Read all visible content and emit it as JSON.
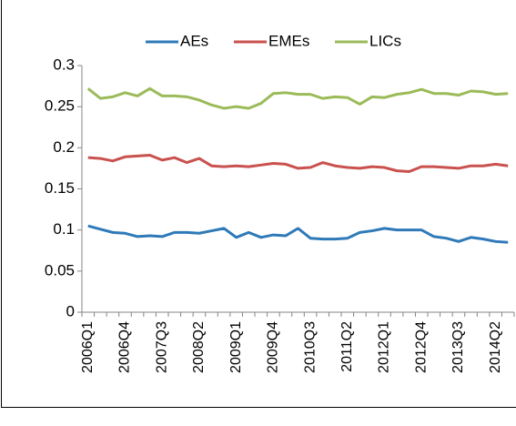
{
  "chart_data": {
    "type": "line",
    "categories": [
      "2006Q1",
      null,
      null,
      "2006Q4",
      null,
      null,
      "2007Q3",
      null,
      null,
      "2008Q2",
      null,
      null,
      "2009Q1",
      null,
      null,
      "2009Q4",
      null,
      null,
      "2010Q3",
      null,
      null,
      "2011Q2",
      null,
      null,
      "2012Q1",
      null,
      null,
      "2012Q4",
      null,
      null,
      "2013Q3",
      null,
      null,
      "2014Q2",
      null
    ],
    "series": [
      {
        "name": "AEs",
        "color": "#2e7ab8",
        "values": [
          0.105,
          0.101,
          0.097,
          0.096,
          0.092,
          0.093,
          0.092,
          0.097,
          0.097,
          0.096,
          0.099,
          0.102,
          0.091,
          0.097,
          0.091,
          0.094,
          0.093,
          0.102,
          0.09,
          0.089,
          0.089,
          0.09,
          0.097,
          0.099,
          0.102,
          0.1,
          0.1,
          0.1,
          0.092,
          0.09,
          0.086,
          0.091,
          0.089,
          0.086,
          0.085
        ]
      },
      {
        "name": "EMEs",
        "color": "#c9514e",
        "values": [
          0.188,
          0.187,
          0.184,
          0.189,
          0.19,
          0.191,
          0.185,
          0.188,
          0.182,
          0.187,
          0.178,
          0.177,
          0.178,
          0.177,
          0.179,
          0.181,
          0.18,
          0.175,
          0.176,
          0.182,
          0.178,
          0.176,
          0.175,
          0.177,
          0.176,
          0.172,
          0.171,
          0.177,
          0.177,
          0.176,
          0.175,
          0.178,
          0.178,
          0.18,
          0.178
        ]
      },
      {
        "name": "LICs",
        "color": "#9bbb59",
        "values": [
          0.272,
          0.26,
          0.262,
          0.267,
          0.263,
          0.272,
          0.263,
          0.263,
          0.262,
          0.258,
          0.252,
          0.248,
          0.25,
          0.248,
          0.254,
          0.266,
          0.267,
          0.265,
          0.265,
          0.26,
          0.262,
          0.261,
          0.253,
          0.262,
          0.261,
          0.265,
          0.267,
          0.271,
          0.266,
          0.266,
          0.264,
          0.269,
          0.268,
          0.265,
          0.266
        ]
      }
    ],
    "ylim": [
      0,
      0.3
    ],
    "yticks": [
      0,
      0.05,
      0.1,
      0.15,
      0.2,
      0.25,
      0.3
    ],
    "legend": "top"
  }
}
